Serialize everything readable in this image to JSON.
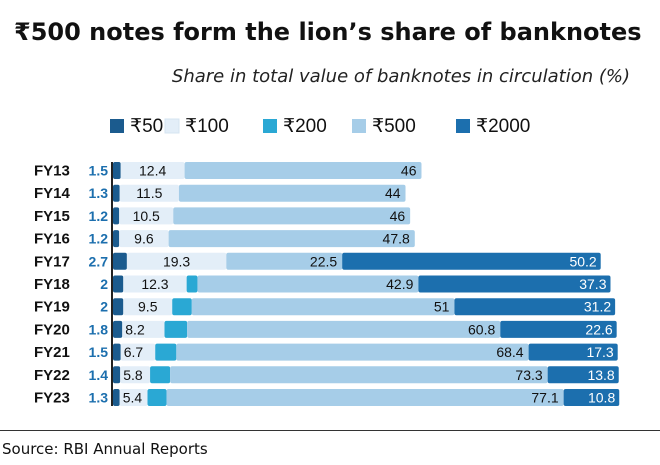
{
  "header": {
    "title": "₹500 notes form the lion’s share of banknotes",
    "subtitle": "Share in total value of banknotes in circulation (%)"
  },
  "footer": {
    "source": "Source: RBI Annual Reports"
  },
  "colors": {
    "₹50": "#1b5b8e",
    "₹100": "#e3eef8",
    "₹200": "#2aa8d4",
    "₹500": "#a6cde8",
    "₹2000": "#1c6fae",
    "year_label": "#111111",
    "small_value_label": "#1c6fae"
  },
  "chart_data": {
    "type": "bar",
    "orientation": "horizontal",
    "stacked": true,
    "title": "₹500 notes form the lion’s share of banknotes",
    "subtitle": "Share in total value of banknotes in circulation (%)",
    "legend_position": "top",
    "categories": [
      "FY13",
      "FY14",
      "FY15",
      "FY16",
      "FY17",
      "FY18",
      "FY19",
      "FY20",
      "FY21",
      "FY22",
      "FY23"
    ],
    "series": [
      {
        "name": "₹50",
        "values": [
          1.5,
          1.3,
          1.2,
          1.2,
          2.7,
          2.0,
          2.0,
          1.8,
          1.5,
          1.4,
          1.3
        ]
      },
      {
        "name": "₹100",
        "values": [
          12.4,
          11.5,
          10.5,
          9.6,
          19.3,
          12.3,
          9.5,
          8.2,
          6.7,
          5.8,
          5.4
        ]
      },
      {
        "name": "₹200",
        "values": [
          null,
          null,
          null,
          null,
          null,
          2.1,
          3.8,
          4.4,
          4.1,
          3.9,
          3.7
        ]
      },
      {
        "name": "₹500",
        "values": [
          46,
          44,
          46,
          47.8,
          22.5,
          42.9,
          51,
          60.8,
          68.4,
          73.3,
          77.1
        ]
      },
      {
        "name": "₹2000",
        "values": [
          null,
          null,
          null,
          null,
          50.2,
          37.3,
          31.2,
          22.6,
          17.3,
          13.8,
          10.8
        ]
      }
    ]
  }
}
